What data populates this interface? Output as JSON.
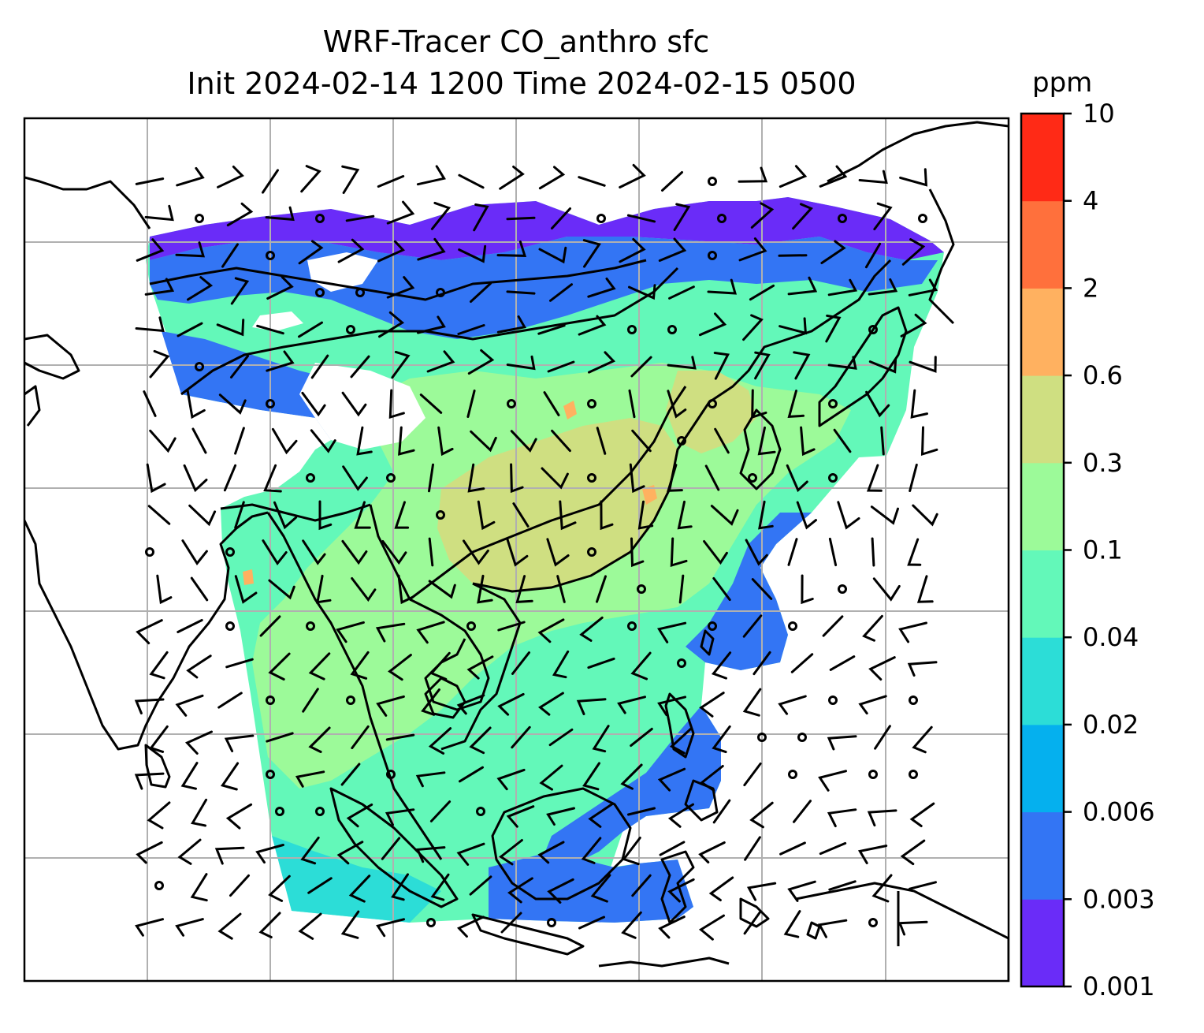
{
  "title": {
    "line1": "WRF-Tracer CO_anthro sfc",
    "line2": "Init 2024-02-14 1200 Time 2024-02-15 0500"
  },
  "colorbar": {
    "unit": "ppm",
    "levels": [
      "0.001",
      "0.003",
      "0.006",
      "0.02",
      "0.04",
      "0.1",
      "0.3",
      "0.6",
      "2",
      "4",
      "10"
    ],
    "colors": [
      "#6a2cf8",
      "#3375f4",
      "#05b0ee",
      "#2cddd7",
      "#63f8b9",
      "#9cfa99",
      "#cfdf81",
      "#ffb160",
      "#ff703c",
      "#ff2a16"
    ]
  },
  "map": {
    "background": "#ffffff",
    "gridline_color": "#b0b0b0",
    "coastline_color": "#000000",
    "gridlines": true,
    "wind_symbols": "barbs"
  }
}
